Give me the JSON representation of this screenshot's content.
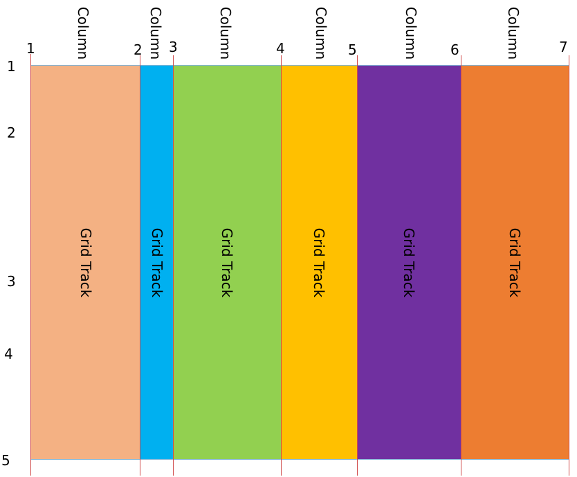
{
  "column_lines": [
    "1",
    "2",
    "3",
    "4",
    "5",
    "6",
    "7"
  ],
  "row_lines": [
    "1",
    "2",
    "3",
    "4",
    "5"
  ],
  "column_header_label": "Column",
  "track_label": "Grid Track",
  "tracks": [
    {
      "color": "#f4b183"
    },
    {
      "color": "#00b0f0"
    },
    {
      "color": "#92d050"
    },
    {
      "color": "#ffc000"
    },
    {
      "color": "#7030a0"
    },
    {
      "color": "#ed7d31"
    }
  ],
  "grid_line_color": "#d04a4a",
  "border_line_color": "#7fb3d5"
}
